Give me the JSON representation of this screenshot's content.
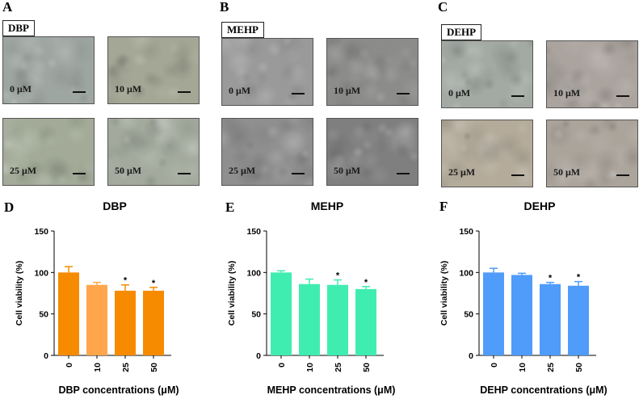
{
  "panels": {
    "A": {
      "letter": "A",
      "label": "DBP",
      "wells": [
        "0 μM",
        "10 μM",
        "25 μM",
        "50 μM"
      ],
      "tones": [
        "#9ea6a1",
        "#a4a795",
        "#a3ab98",
        "#a3aa9d"
      ]
    },
    "B": {
      "letter": "B",
      "label": "MEHP",
      "wells": [
        "0 μM",
        "10 μM",
        "25 μM",
        "50 μM"
      ],
      "tones": [
        "#9a9a9a",
        "#8c8c8a",
        "#8f8f8f",
        "#7f7f7f"
      ]
    },
    "C": {
      "letter": "C",
      "label": "DEHP",
      "wells": [
        "0 μM",
        "10 μM",
        "25 μM",
        "50 μM"
      ],
      "tones": [
        "#a3aaa4",
        "#aaa39e",
        "#b4ab9b",
        "#aba49b"
      ]
    }
  },
  "chart_data": [
    {
      "id": "D",
      "letter": "D",
      "type": "bar",
      "title": "DBP",
      "categories": [
        "0",
        "10",
        "25",
        "50"
      ],
      "values": [
        100,
        85,
        78,
        78
      ],
      "errors": [
        7,
        3,
        7,
        4
      ],
      "significance": [
        "",
        "",
        "*",
        "*"
      ],
      "colors": [
        "#f78b00",
        "#ffa64d",
        "#f78b00",
        "#f78b00"
      ],
      "ylabel": "Cell viability (%)",
      "xlabel": "DBP concentrations (μM)",
      "ylim": [
        0,
        150
      ],
      "yticks": [
        0,
        50,
        100,
        150
      ]
    },
    {
      "id": "E",
      "letter": "E",
      "type": "bar",
      "title": "MEHP",
      "categories": [
        "0",
        "10",
        "25",
        "50"
      ],
      "values": [
        100,
        86,
        85,
        80
      ],
      "errors": [
        2,
        6,
        6,
        3
      ],
      "significance": [
        "",
        "",
        "*",
        "*"
      ],
      "colors": [
        "#40edb0",
        "#40edb0",
        "#40edb0",
        "#40edb0"
      ],
      "ylabel": "Cell viability (%)",
      "xlabel": "MEHP concentrations (μM)",
      "ylim": [
        0,
        150
      ],
      "yticks": [
        0,
        50,
        100,
        150
      ]
    },
    {
      "id": "F",
      "letter": "F",
      "type": "bar",
      "title": "DEHP",
      "categories": [
        "0",
        "10",
        "25",
        "50"
      ],
      "values": [
        100,
        97,
        86,
        84
      ],
      "errors": [
        5,
        2,
        2,
        5
      ],
      "significance": [
        "",
        "",
        "*",
        "*"
      ],
      "colors": [
        "#4f9cfb",
        "#4f9cfb",
        "#4f9cfb",
        "#4f9cfb"
      ],
      "ylabel": "Cell viability (%)",
      "xlabel": "DEHP concentrations (μM)",
      "ylim": [
        0,
        150
      ],
      "yticks": [
        0,
        50,
        100,
        150
      ]
    }
  ]
}
